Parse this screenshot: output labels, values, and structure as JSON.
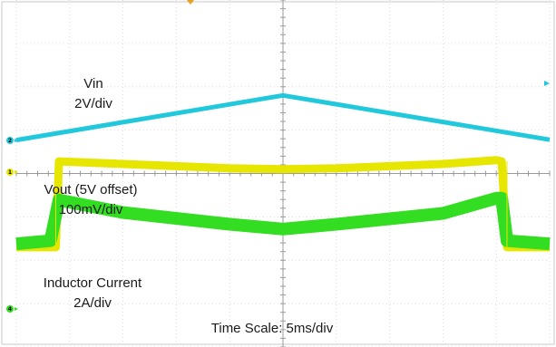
{
  "chart_data": {
    "type": "line",
    "x_unit": "ms",
    "xlim": [
      0,
      50
    ],
    "divisions": {
      "horizontal": 10,
      "vertical": 8
    },
    "series": [
      {
        "name": "Vin",
        "color": "#22c8dc",
        "x": [
          0,
          25,
          50
        ],
        "y": [
          0.77,
          1.8,
          0.78
        ]
      },
      {
        "name": "Vout (5V offset)",
        "color": "#e6e600",
        "x": [
          0,
          3.7,
          4.0,
          10,
          20,
          25,
          30,
          40,
          45,
          45.5,
          46.0,
          50
        ],
        "y": [
          -1.7,
          -1.7,
          0.28,
          0.22,
          0.12,
          0.1,
          0.12,
          0.22,
          0.31,
          0.28,
          -1.7,
          -1.7
        ]
      },
      {
        "name": "Inductor Current",
        "color": "#33dd22",
        "x": [
          0,
          3.2,
          4.0,
          10,
          20,
          25,
          30,
          40,
          45,
          45.5,
          46.0,
          50
        ],
        "y": [
          -1.62,
          -1.55,
          -0.61,
          -0.9,
          -1.17,
          -1.28,
          -1.17,
          -0.92,
          -0.57,
          -0.57,
          -1.55,
          -1.62
        ]
      }
    ],
    "annotations": [
      {
        "text": "Vin"
      },
      {
        "text": "2V/div"
      },
      {
        "text": "Vout (5V offset)"
      },
      {
        "text": "100mV/div"
      },
      {
        "text": "Inductor Current"
      },
      {
        "text": "2A/div"
      },
      {
        "text": "Time Scale: 5ms/div"
      }
    ],
    "channel_markers": [
      {
        "label": "2",
        "color": "#22c8dc"
      },
      {
        "label": "1",
        "color": "#e6e600"
      },
      {
        "label": "4",
        "color": "#33dd22"
      }
    ],
    "grid": true
  }
}
